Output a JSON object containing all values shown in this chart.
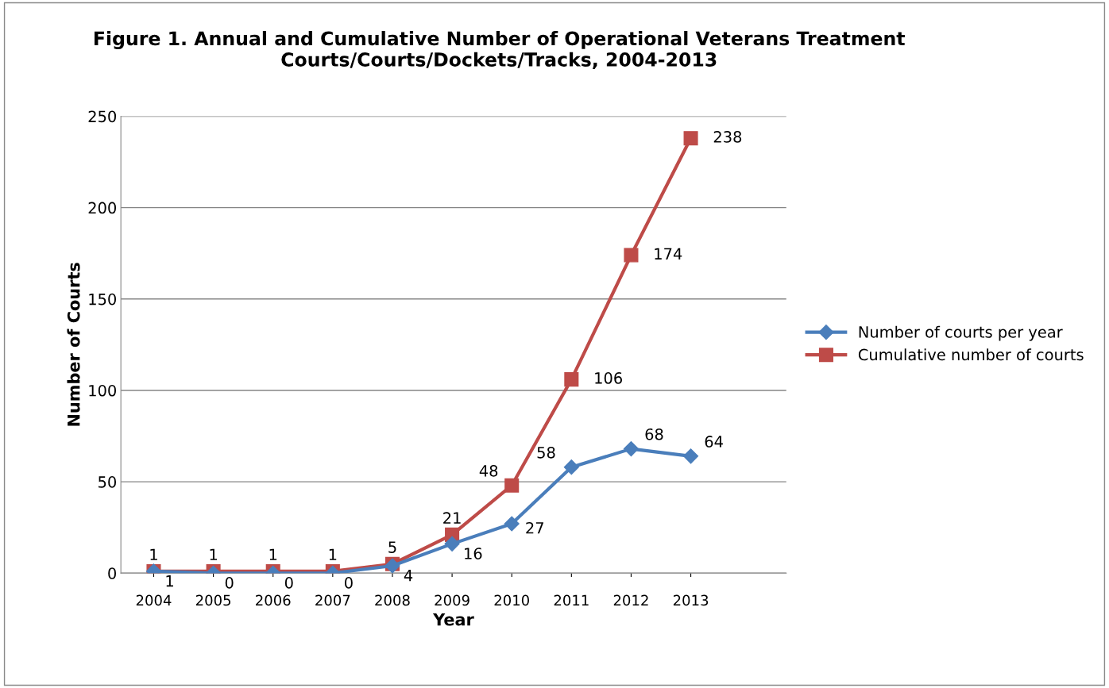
{
  "chart_data": {
    "type": "line",
    "title": "Figure 1. Annual and Cumulative Number of Operational Veterans Treatment Courts/Courts/Dockets/Tracks, 2004-2013",
    "xlabel": "Year",
    "ylabel": "Number of Courts",
    "categories": [
      "2004",
      "2005",
      "2006",
      "2007",
      "2008",
      "2009",
      "2010",
      "2011",
      "2012",
      "2013"
    ],
    "series": [
      {
        "name": "Number of courts per year",
        "color": "#4a7ebb",
        "marker": "diamond",
        "values": [
          1,
          0,
          0,
          0,
          4,
          16,
          27,
          58,
          68,
          64
        ]
      },
      {
        "name": "Cumulative number of courts",
        "color": "#be4b48",
        "marker": "square",
        "values": [
          1,
          1,
          1,
          1,
          5,
          21,
          48,
          106,
          174,
          238
        ]
      }
    ],
    "ylim": [
      0,
      250
    ],
    "yticks": [
      0,
      50,
      100,
      150,
      200,
      250
    ],
    "grid": "y",
    "legend": "right",
    "data_labels": true,
    "line_style": "solid"
  }
}
